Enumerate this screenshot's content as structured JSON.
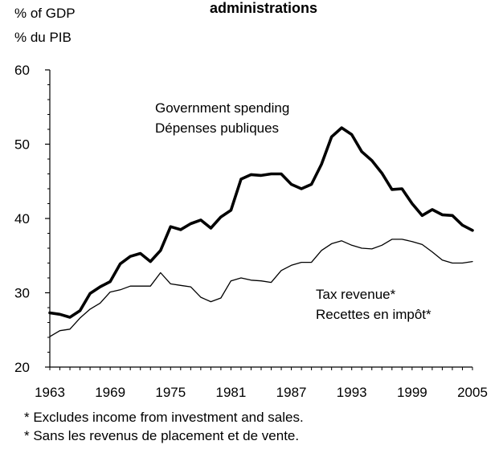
{
  "chart_data": {
    "type": "line",
    "title": "administrations",
    "y_unit_lines": [
      "% of GDP",
      "% du PIB"
    ],
    "ylim": [
      20,
      60
    ],
    "y_ticks": [
      "60",
      "50",
      "40",
      "30",
      "20"
    ],
    "x_ticks": [
      "1963",
      "1969",
      "1975",
      "1981",
      "1987",
      "1993",
      "1999",
      "2005"
    ],
    "xlim": [
      1963,
      2005
    ],
    "legend": "direct labels",
    "grid": false,
    "x": [
      1963,
      1964,
      1965,
      1966,
      1967,
      1968,
      1969,
      1970,
      1971,
      1972,
      1973,
      1974,
      1975,
      1976,
      1977,
      1978,
      1979,
      1980,
      1981,
      1982,
      1983,
      1984,
      1985,
      1986,
      1987,
      1988,
      1989,
      1990,
      1991,
      1992,
      1993,
      1994,
      1995,
      1996,
      1997,
      1998,
      1999,
      2000,
      2001,
      2002,
      2003,
      2004,
      2005
    ],
    "series": [
      {
        "label_lines": [
          "Government spending",
          "Dépenses publiques"
        ],
        "color": "#000000",
        "style": "thick",
        "values": [
          27.3,
          27.1,
          26.7,
          27.6,
          29.9,
          30.8,
          31.5,
          33.9,
          34.9,
          35.3,
          34.2,
          35.7,
          38.9,
          38.5,
          39.3,
          39.8,
          38.7,
          40.2,
          41.1,
          45.3,
          45.9,
          45.8,
          46.0,
          46.0,
          44.6,
          44.0,
          44.6,
          47.3,
          51.0,
          52.2,
          51.3,
          49.0,
          47.8,
          46.1,
          43.9,
          44.0,
          42.0,
          40.4,
          41.2,
          40.5,
          40.4,
          39.1,
          38.4
        ]
      },
      {
        "label_lines": [
          "Tax revenue*",
          "Recettes en impôt*"
        ],
        "color": "#000000",
        "style": "thin",
        "values": [
          24.1,
          24.9,
          25.1,
          26.6,
          27.8,
          28.6,
          30.1,
          30.4,
          30.9,
          30.9,
          30.9,
          32.7,
          31.2,
          31.0,
          30.8,
          29.4,
          28.8,
          29.3,
          31.6,
          32.0,
          31.7,
          31.6,
          31.4,
          33.0,
          33.7,
          34.1,
          34.1,
          35.7,
          36.6,
          37.0,
          36.4,
          36.0,
          35.9,
          36.4,
          37.2,
          37.2,
          36.9,
          36.5,
          35.5,
          34.4,
          34.0,
          34.0,
          34.2
        ]
      }
    ],
    "footnotes": [
      "* Excludes income from investment and sales.",
      "* Sans les revenus de placement et de vente."
    ]
  }
}
